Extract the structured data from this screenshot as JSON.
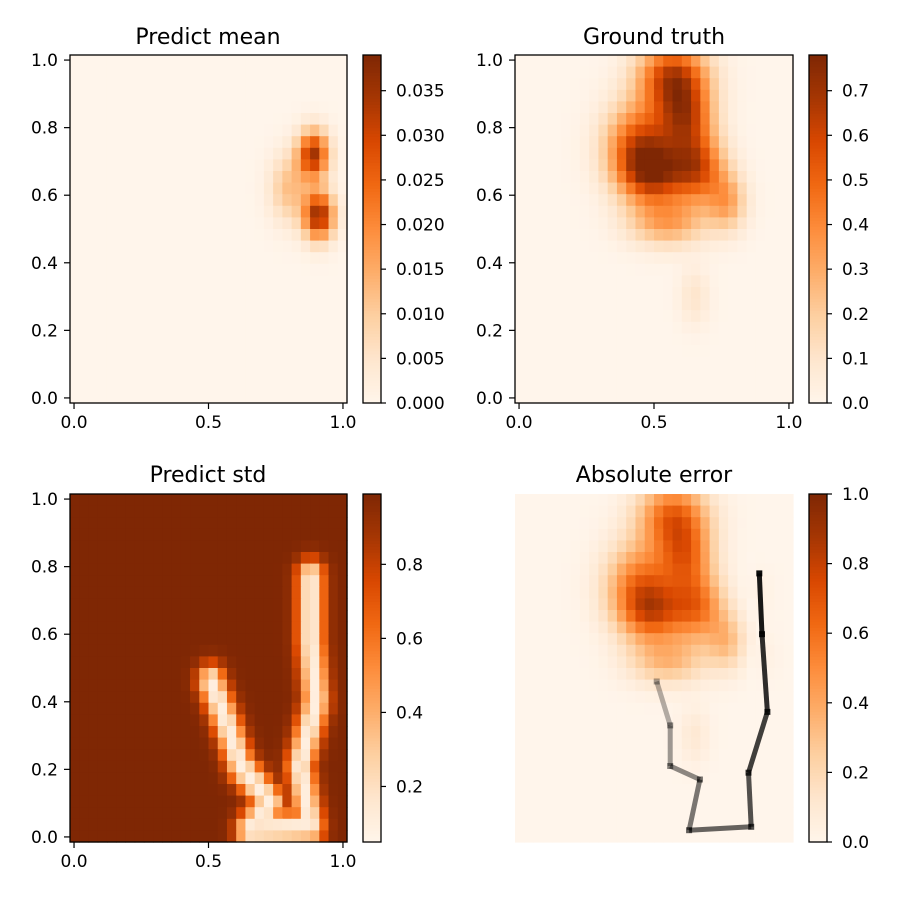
{
  "chart_data": [
    {
      "type": "heatmap",
      "title": "Predict mean",
      "xticks": [
        "0.0",
        "0.5",
        "1.0"
      ],
      "yticks": [
        "0.0",
        "0.2",
        "0.4",
        "0.6",
        "0.8",
        "1.0"
      ],
      "xlim": [
        0,
        1
      ],
      "ylim": [
        0,
        1
      ],
      "colormap": "Oranges",
      "colorbar_range": [
        0,
        0.039
      ],
      "colorbar_ticks": [
        "0.000",
        "0.005",
        "0.010",
        "0.015",
        "0.020",
        "0.025",
        "0.030",
        "0.035"
      ],
      "blobs": [
        {
          "x": 0.89,
          "y": 0.72,
          "sx": 0.04,
          "sy": 0.05,
          "amp": 0.034
        },
        {
          "x": 0.91,
          "y": 0.54,
          "sx": 0.04,
          "sy": 0.05,
          "amp": 0.036
        },
        {
          "x": 0.8,
          "y": 0.62,
          "sx": 0.05,
          "sy": 0.07,
          "amp": 0.012
        }
      ]
    },
    {
      "type": "heatmap",
      "title": "Ground truth",
      "xticks": [
        "0.0",
        "0.5",
        "1.0"
      ],
      "yticks": [
        "0.0",
        "0.2",
        "0.4",
        "0.6",
        "0.8",
        "1.0"
      ],
      "xlim": [
        0,
        1
      ],
      "ylim": [
        0,
        1
      ],
      "colormap": "Oranges",
      "colorbar_range": [
        0,
        0.78
      ],
      "colorbar_ticks": [
        "0.0",
        "0.1",
        "0.2",
        "0.3",
        "0.4",
        "0.5",
        "0.6",
        "0.7"
      ],
      "blobs": [
        {
          "x": 0.57,
          "y": 0.95,
          "sx": 0.09,
          "sy": 0.07,
          "amp": 0.62
        },
        {
          "x": 0.45,
          "y": 0.74,
          "sx": 0.09,
          "sy": 0.09,
          "amp": 0.58
        },
        {
          "x": 0.5,
          "y": 0.66,
          "sx": 0.08,
          "sy": 0.06,
          "amp": 0.45
        },
        {
          "x": 0.66,
          "y": 0.68,
          "sx": 0.07,
          "sy": 0.07,
          "amp": 0.55
        },
        {
          "x": 0.62,
          "y": 0.83,
          "sx": 0.07,
          "sy": 0.07,
          "amp": 0.5
        },
        {
          "x": 0.55,
          "y": 0.52,
          "sx": 0.1,
          "sy": 0.05,
          "amp": 0.32
        },
        {
          "x": 0.77,
          "y": 0.58,
          "sx": 0.05,
          "sy": 0.06,
          "amp": 0.3
        },
        {
          "x": 0.65,
          "y": 0.3,
          "sx": 0.04,
          "sy": 0.06,
          "amp": 0.1
        }
      ]
    },
    {
      "type": "heatmap",
      "title": "Predict std",
      "xticks": [
        "0.0",
        "0.5",
        "1.0"
      ],
      "yticks": [
        "0.0",
        "0.2",
        "0.4",
        "0.6",
        "0.8",
        "1.0"
      ],
      "xlim": [
        0,
        1
      ],
      "ylim": [
        0,
        1
      ],
      "colormap": "Oranges",
      "colorbar_range": [
        0.05,
        0.99
      ],
      "colorbar_ticks": [
        "0.2",
        "0.4",
        "0.6",
        "0.8"
      ],
      "base_value": 0.99,
      "path": [
        [
          0.51,
          0.46
        ],
        [
          0.57,
          0.33
        ],
        [
          0.62,
          0.21
        ],
        [
          0.73,
          0.1
        ],
        [
          0.65,
          0.02
        ],
        [
          0.88,
          0.03
        ],
        [
          0.84,
          0.21
        ],
        [
          0.9,
          0.4
        ],
        [
          0.88,
          0.58
        ],
        [
          0.88,
          0.77
        ]
      ]
    },
    {
      "type": "heatmap",
      "title": "Absolute error",
      "colormap": "Oranges",
      "colorbar_range": [
        0,
        1
      ],
      "colorbar_ticks": [
        "0.0",
        "0.2",
        "0.4",
        "0.6",
        "0.8",
        "1.0"
      ],
      "trajectory_color": "#000000",
      "trajectory": [
        [
          0.51,
          0.46
        ],
        [
          0.56,
          0.33
        ],
        [
          0.56,
          0.21
        ],
        [
          0.67,
          0.17
        ],
        [
          0.63,
          0.02
        ],
        [
          0.86,
          0.03
        ],
        [
          0.85,
          0.19
        ],
        [
          0.92,
          0.37
        ],
        [
          0.9,
          0.6
        ],
        [
          0.89,
          0.78
        ]
      ]
    }
  ]
}
